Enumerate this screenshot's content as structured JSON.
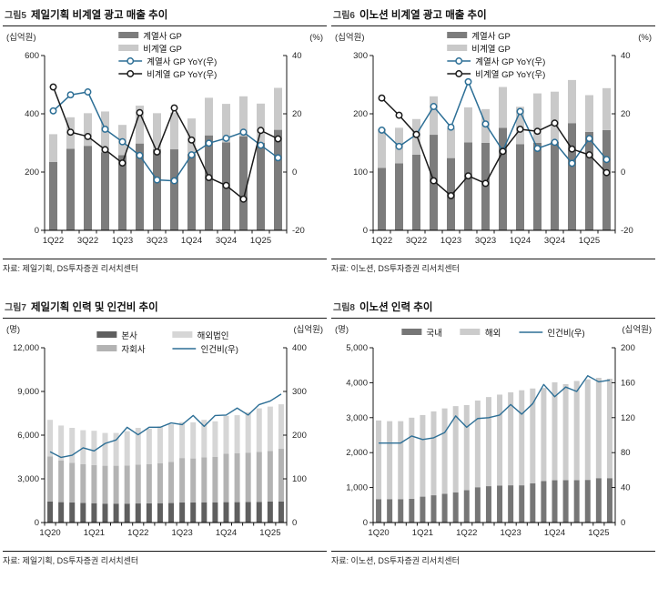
{
  "panels": [
    {
      "title_prefix": "그림5",
      "title": "제일기획 비계열 광고 매출 추이",
      "source": "자료: 제일기획, DS투자증권 리서치센터",
      "legend_layout": "col",
      "chart_index": 0
    },
    {
      "title_prefix": "그림6",
      "title": "이노션 비계열 광고 매출 추이",
      "source": "자료: 이노션, DS투자증권 리서치센터",
      "legend_layout": "col",
      "chart_index": 1
    },
    {
      "title_prefix": "그림7",
      "title": "제일기획 인력 및 인건비 추이",
      "source": "자료: 제일기획, DS투자증권 리서치센터",
      "legend_layout": "grid2",
      "chart_index": 2
    },
    {
      "title_prefix": "그림8",
      "title": "이노션 인력 추이",
      "source": "자료: 이노션, DS투자증권 리서치센터",
      "legend_layout": "row",
      "chart_index": 3
    }
  ],
  "chart_data": [
    {
      "type": "bar",
      "title": "그림5 제일기획 비계열 광고 매출 추이",
      "categories": [
        "1Q22",
        "2Q22",
        "3Q22",
        "4Q22",
        "1Q23",
        "2Q23",
        "3Q23",
        "4Q23",
        "1Q24",
        "2Q24",
        "3Q24",
        "4Q24",
        "1Q25",
        "2Q25"
      ],
      "x_label_step": 2,
      "stacked": true,
      "grid": false,
      "legend_position": "top-center",
      "bar_series": [
        {
          "name": "계열사 GP",
          "color": "#7c7c7c",
          "values": [
            235,
            280,
            290,
            268,
            258,
            298,
            278,
            278,
            262,
            326,
            302,
            323,
            300,
            345
          ]
        },
        {
          "name": "비계열 GP",
          "color": "#c9c9c9",
          "values": [
            95,
            108,
            112,
            140,
            104,
            130,
            124,
            126,
            122,
            129,
            132,
            137,
            135,
            144
          ]
        }
      ],
      "line_series": [
        {
          "name": "계열사 GP YoY(우)",
          "color": "#2d6f96",
          "markers": true,
          "axis": "right",
          "values": [
            21,
            26.5,
            27.5,
            14.7,
            10.4,
            5.7,
            -2.7,
            -3,
            5.9,
            9.9,
            11.6,
            13.7,
            9.2,
            4.9
          ]
        },
        {
          "name": "비계열 GP YoY(우)",
          "color": "#1a1a1a",
          "markers": true,
          "axis": "right",
          "values": [
            29.2,
            13.7,
            12.2,
            7.7,
            3.1,
            20.4,
            6.9,
            22,
            11,
            -1.9,
            -4.6,
            -9.3,
            14.3,
            11.4
          ]
        }
      ],
      "left_axis": {
        "unit": "(십억원)",
        "min": 0,
        "max": 600,
        "ticks": [
          0,
          200,
          400,
          600
        ],
        "tick_labels": [
          "0",
          "200",
          "400",
          "600"
        ]
      },
      "right_axis": {
        "unit": "(%)",
        "min": -20,
        "max": 40,
        "ticks": [
          -20,
          0,
          20,
          40
        ],
        "tick_labels": [
          "-20",
          "0",
          "20",
          "40"
        ]
      }
    },
    {
      "type": "bar",
      "title": "그림6 이노션 비계열 광고 매출 추이",
      "categories": [
        "1Q22",
        "2Q22",
        "3Q22",
        "4Q22",
        "1Q23",
        "2Q23",
        "3Q23",
        "4Q23",
        "1Q24",
        "2Q24",
        "3Q24",
        "4Q24",
        "1Q25",
        "2Q25"
      ],
      "x_label_step": 2,
      "stacked": true,
      "grid": false,
      "legend_position": "top-center",
      "bar_series": [
        {
          "name": "계열사 GP",
          "color": "#7c7c7c",
          "values": [
            107,
            115,
            130,
            164,
            124,
            151,
            150,
            176,
            148,
            150,
            152,
            184,
            169,
            172
          ]
        },
        {
          "name": "비계열 GP",
          "color": "#c9c9c9",
          "values": [
            67,
            61,
            61,
            66,
            51,
            60,
            58,
            70,
            64,
            85,
            86,
            74,
            63,
            72
          ]
        }
      ],
      "line_series": [
        {
          "name": "계열사 GP YoY(우)",
          "color": "#2d6f96",
          "markers": true,
          "axis": "right",
          "values": [
            14.4,
            8.8,
            12.9,
            22.5,
            15.4,
            31,
            16.5,
            7.3,
            20.8,
            8.1,
            10.2,
            3,
            11.5,
            4.3
          ]
        },
        {
          "name": "비계열 GP YoY(우)",
          "color": "#1a1a1a",
          "markers": true,
          "axis": "right",
          "values": [
            25.4,
            19.5,
            12.9,
            -3,
            -8.1,
            -1.3,
            -3.9,
            7.1,
            14.7,
            14,
            16.8,
            7.9,
            5.9,
            -0.2
          ]
        }
      ],
      "left_axis": {
        "unit": "(십억원)",
        "min": 0,
        "max": 300,
        "ticks": [
          0,
          100,
          200,
          300
        ],
        "tick_labels": [
          "0",
          "100",
          "200",
          "300"
        ]
      },
      "right_axis": {
        "unit": "(%)",
        "min": -20,
        "max": 40,
        "ticks": [
          -20,
          0,
          20,
          40
        ],
        "tick_labels": [
          "-20",
          "0",
          "20",
          "40"
        ]
      }
    },
    {
      "type": "bar",
      "title": "그림7 제일기획 인력 및 인건비 추이",
      "categories": [
        "1Q20",
        "2Q20",
        "3Q20",
        "4Q20",
        "1Q21",
        "2Q21",
        "3Q21",
        "4Q21",
        "1Q22",
        "2Q22",
        "3Q22",
        "4Q22",
        "1Q23",
        "2Q23",
        "3Q23",
        "4Q23",
        "1Q24",
        "2Q24",
        "3Q24",
        "4Q24",
        "1Q25",
        "2Q25"
      ],
      "x_label_step": 4,
      "stacked": true,
      "grid": false,
      "legend_position": "top-center",
      "bar_series": [
        {
          "name": "본사",
          "color": "#5f5f5f",
          "values": [
            1450,
            1400,
            1380,
            1350,
            1330,
            1300,
            1300,
            1300,
            1310,
            1320,
            1330,
            1340,
            1380,
            1380,
            1390,
            1390,
            1400,
            1400,
            1410,
            1420,
            1440,
            1450
          ]
        },
        {
          "name": "자회사",
          "color": "#b3b3b3",
          "values": [
            3080,
            2850,
            2720,
            2650,
            2610,
            2600,
            2600,
            2620,
            2670,
            2680,
            2750,
            2820,
            3050,
            3020,
            3090,
            3110,
            3330,
            3350,
            3390,
            3430,
            3480,
            3610
          ]
        },
        {
          "name": "해외법인",
          "color": "#d6d6d6",
          "values": [
            2520,
            2410,
            2400,
            2340,
            2360,
            2250,
            2250,
            2350,
            2520,
            2440,
            2520,
            2580,
            2470,
            2480,
            2570,
            2450,
            2600,
            2620,
            2770,
            2990,
            3040,
            3060
          ]
        }
      ],
      "line_series": [
        {
          "name": "인건비(우)",
          "color": "#2d6f96",
          "markers": false,
          "axis": "right",
          "values": [
            162,
            149,
            154,
            171,
            164,
            181,
            189,
            218,
            201,
            218,
            218,
            228,
            224,
            245,
            220,
            245,
            246,
            262,
            246,
            270,
            278,
            294
          ]
        }
      ],
      "left_axis": {
        "unit": "(명)",
        "min": 0,
        "max": 12000,
        "ticks": [
          0,
          3000,
          6000,
          9000,
          12000
        ],
        "tick_labels": [
          "0",
          "3,000",
          "6,000",
          "9,000",
          "12,000"
        ]
      },
      "right_axis": {
        "unit": "(십억원)",
        "min": 0,
        "max": 400,
        "ticks": [
          0,
          100,
          200,
          300,
          400
        ],
        "tick_labels": [
          "0",
          "100",
          "200",
          "300",
          "400"
        ]
      }
    },
    {
      "type": "bar",
      "title": "그림8 이노션 인력 추이",
      "categories": [
        "1Q20",
        "2Q20",
        "3Q20",
        "4Q20",
        "1Q21",
        "2Q21",
        "3Q21",
        "4Q21",
        "1Q22",
        "2Q22",
        "3Q22",
        "4Q22",
        "1Q23",
        "2Q23",
        "3Q23",
        "4Q23",
        "1Q24",
        "2Q24",
        "3Q24",
        "4Q24",
        "1Q25",
        "2Q25"
      ],
      "x_label_step": 4,
      "stacked": true,
      "grid": false,
      "legend_position": "top-center",
      "bar_series": [
        {
          "name": "국내",
          "color": "#767676",
          "values": [
            670,
            670,
            670,
            680,
            740,
            780,
            820,
            865,
            925,
            1010,
            1040,
            1055,
            1065,
            1065,
            1125,
            1185,
            1210,
            1215,
            1215,
            1220,
            1270,
            1270
          ]
        },
        {
          "name": "해외",
          "color": "#cccccc",
          "values": [
            2250,
            2230,
            2230,
            2320,
            2335,
            2400,
            2445,
            2465,
            2435,
            2480,
            2550,
            2605,
            2660,
            2720,
            2710,
            2665,
            2800,
            2745,
            2835,
            2875,
            2870,
            2845
          ]
        }
      ],
      "line_series": [
        {
          "name": "인건비(우)",
          "color": "#2d6f96",
          "markers": false,
          "axis": "right",
          "values": [
            91,
            91,
            91,
            99,
            95,
            97,
            103,
            122,
            109,
            119,
            120,
            123,
            135,
            124,
            136,
            158,
            144,
            155,
            150,
            168,
            161,
            163
          ]
        }
      ],
      "left_axis": {
        "unit": "(명)",
        "min": 0,
        "max": 5000,
        "ticks": [
          0,
          1000,
          2000,
          3000,
          4000,
          5000
        ],
        "tick_labels": [
          "0",
          "1,000",
          "2,000",
          "3,000",
          "4,000",
          "5,000"
        ]
      },
      "right_axis": {
        "unit": "(십억원)",
        "min": 0,
        "max": 200,
        "ticks": [
          0,
          40,
          80,
          120,
          160,
          200
        ],
        "tick_labels": [
          "0",
          "40",
          "80",
          "120",
          "160",
          "200"
        ]
      }
    }
  ]
}
